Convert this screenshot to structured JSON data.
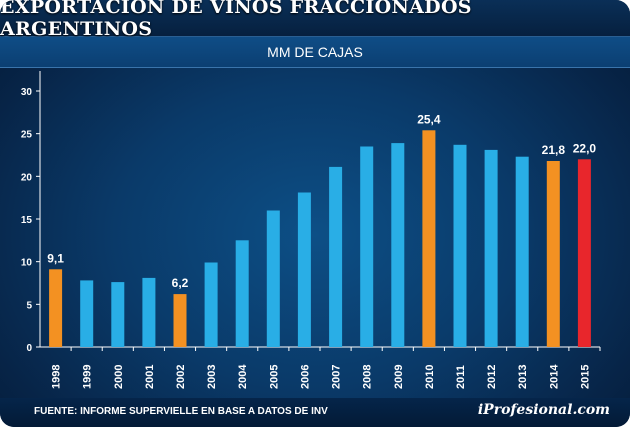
{
  "header": {
    "title": "EXPORTACIÓN DE VINOS FRACCIONADOS ARGENTINOS",
    "subtitle": "MM DE CAJAS"
  },
  "footer": {
    "source": "FUENTE: INFORME SUPERVIELLE EN BASE A DATOS DE INV",
    "logo": "iProfesional.com"
  },
  "colors": {
    "default_bar": "#29aee6",
    "highlight_bar": "#f39122",
    "latest_bar": "#e8262c",
    "axis": "#ffffff"
  },
  "chart_data": {
    "type": "bar",
    "title": "EXPORTACIÓN DE VINOS FRACCIONADOS ARGENTINOS",
    "subtitle": "MM DE CAJAS",
    "xlabel": "",
    "ylabel": "",
    "ylim": [
      0,
      30
    ],
    "yticks": [
      0,
      5,
      10,
      15,
      20,
      25,
      30
    ],
    "grid": false,
    "categories": [
      "1998",
      "1999",
      "2000",
      "2001",
      "2002",
      "2003",
      "2004",
      "2005",
      "2006",
      "2007",
      "2008",
      "2009",
      "2010",
      "2011",
      "2012",
      "2013",
      "2014",
      "2015"
    ],
    "values": [
      9.1,
      7.8,
      7.6,
      8.1,
      6.2,
      9.9,
      12.5,
      16.0,
      18.1,
      21.1,
      23.5,
      23.9,
      25.4,
      23.7,
      23.1,
      22.3,
      21.8,
      22.0
    ],
    "bar_colors": [
      "orange",
      "blue",
      "blue",
      "blue",
      "orange",
      "blue",
      "blue",
      "blue",
      "blue",
      "blue",
      "blue",
      "blue",
      "orange",
      "blue",
      "blue",
      "blue",
      "orange",
      "red"
    ],
    "data_labels": [
      "9,1",
      "",
      "",
      "",
      "6,2",
      "",
      "",
      "",
      "",
      "",
      "",
      "",
      "25,4",
      "",
      "",
      "",
      "21,8",
      "22,0"
    ]
  }
}
